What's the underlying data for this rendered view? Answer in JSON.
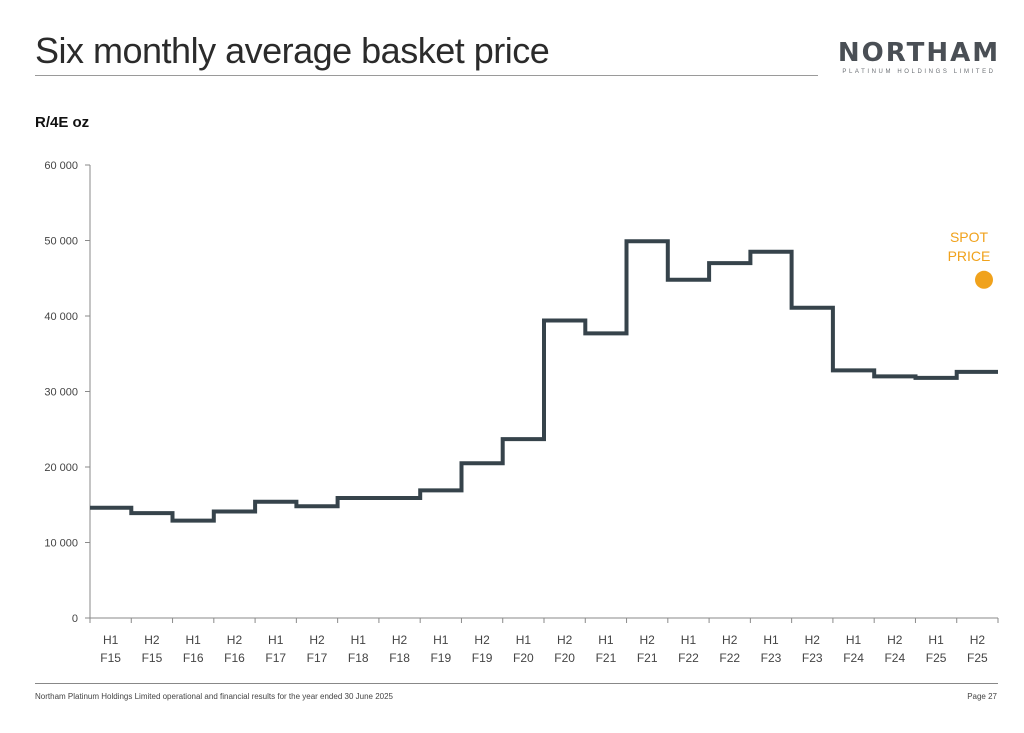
{
  "header": {
    "title": "Six monthly average basket price",
    "logo_main": "NORTHAM",
    "logo_sub": "PLATINUM HOLDINGS LIMITED"
  },
  "chart_data": {
    "type": "line",
    "step": true,
    "ylabel": "R/4E oz",
    "ylim": [
      0,
      60000
    ],
    "yticks": [
      "0",
      "10 000",
      "20 000",
      "30 000",
      "40 000",
      "50 000",
      "60 000"
    ],
    "ytick_values": [
      0,
      10000,
      20000,
      30000,
      40000,
      50000,
      60000
    ],
    "categories": [
      [
        "H1",
        "F15"
      ],
      [
        "H2",
        "F15"
      ],
      [
        "H1",
        "F16"
      ],
      [
        "H2",
        "F16"
      ],
      [
        "H1",
        "F17"
      ],
      [
        "H2",
        "F17"
      ],
      [
        "H1",
        "F18"
      ],
      [
        "H2",
        "F18"
      ],
      [
        "H1",
        "F19"
      ],
      [
        "H2",
        "F19"
      ],
      [
        "H1",
        "F20"
      ],
      [
        "H2",
        "F20"
      ],
      [
        "H1",
        "F21"
      ],
      [
        "H2",
        "F21"
      ],
      [
        "H1",
        "F22"
      ],
      [
        "H2",
        "F22"
      ],
      [
        "H1",
        "F23"
      ],
      [
        "H2",
        "F23"
      ],
      [
        "H1",
        "F24"
      ],
      [
        "H2",
        "F24"
      ],
      [
        "H1",
        "F25"
      ],
      [
        "H2",
        "F25"
      ]
    ],
    "series": [
      {
        "values": [
          14600,
          13900,
          12900,
          14100,
          15400,
          14800,
          15900,
          15900,
          16900,
          20500,
          23700,
          39400,
          37700,
          49900,
          44800,
          47000,
          48500,
          41100,
          32800,
          32000,
          31800,
          32600
        ],
        "color": "#36434b"
      }
    ],
    "annotation": {
      "label_line1": "SPOT",
      "label_line2": "PRICE",
      "value": 44800,
      "color": "#f0a21c"
    },
    "grid": false,
    "legend": "none"
  },
  "footer": {
    "text": "Northam Platinum Holdings Limited operational and financial results for the year ended 30 June 2025",
    "page": "Page 27"
  }
}
